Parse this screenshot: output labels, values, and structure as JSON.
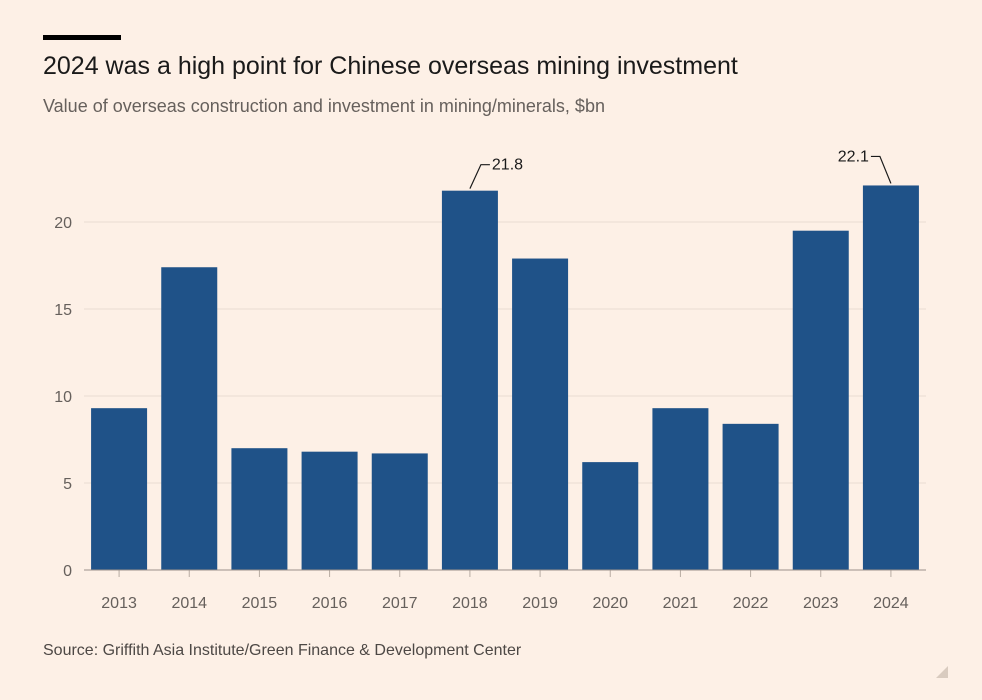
{
  "header": {
    "title": "2024 was a high point for Chinese overseas mining investment",
    "subtitle": "Value of overseas construction and investment in mining/minerals, $bn"
  },
  "footer": {
    "source": "Source: Griffith Asia Institute/Green Finance & Development Center"
  },
  "colors": {
    "background": "#FDF0E6",
    "bar": "#1F5288",
    "gridline": "#E9DDD3",
    "axis_text": "#66605C",
    "annotation": "#1A1A1A"
  },
  "chart_data": {
    "type": "bar",
    "title": "2024 was a high point for Chinese overseas mining investment",
    "subtitle": "Value of overseas construction and investment in mining/minerals, $bn",
    "xlabel": "",
    "ylabel": "",
    "categories": [
      "2013",
      "2014",
      "2015",
      "2016",
      "2017",
      "2018",
      "2019",
      "2020",
      "2021",
      "2022",
      "2023",
      "2024"
    ],
    "values": [
      9.3,
      17.4,
      7.0,
      6.8,
      6.7,
      21.8,
      17.9,
      6.2,
      9.3,
      8.4,
      19.5,
      22.1
    ],
    "ylim": [
      0,
      23
    ],
    "yticks": [
      0,
      5,
      10,
      15,
      20
    ],
    "grid": true,
    "annotations": [
      {
        "category": "2018",
        "label": "21.8"
      },
      {
        "category": "2024",
        "label": "22.1"
      }
    ]
  }
}
